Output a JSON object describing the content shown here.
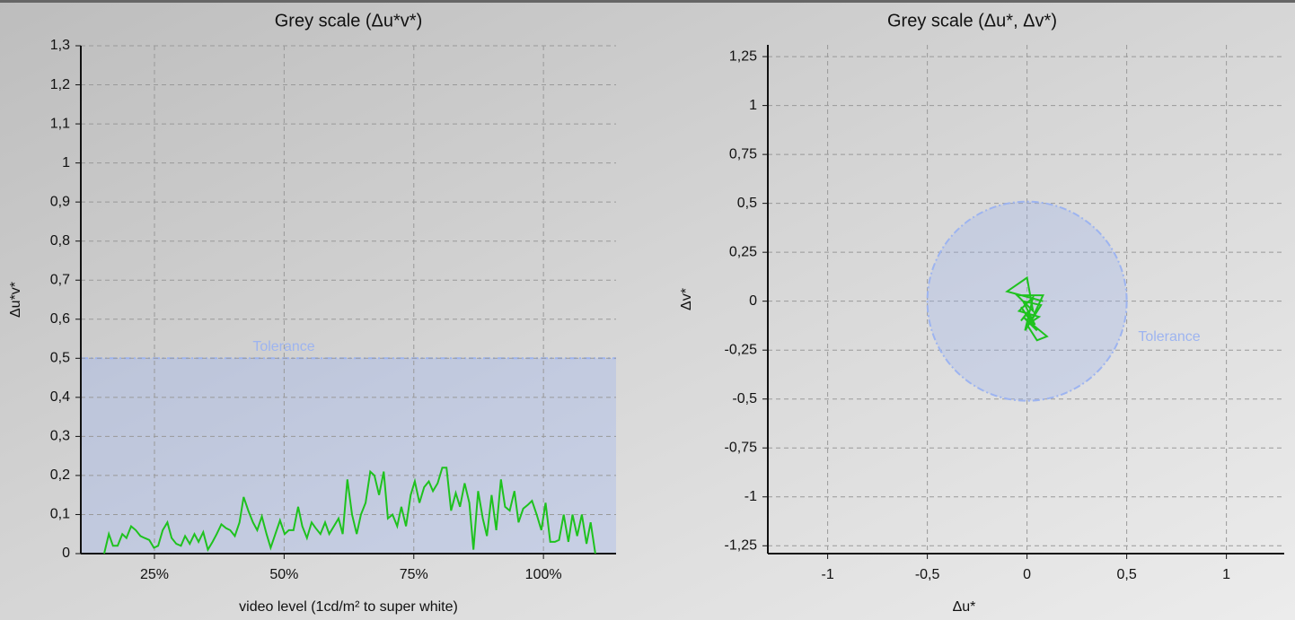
{
  "chart_data": [
    {
      "type": "line",
      "title": "Grey scale (Δu*v*)",
      "x_label": "video level (1cd/m² to super white)",
      "y_label": "Δu*v*",
      "color": "#1ec21e",
      "grid": true,
      "tolerance": {
        "label": "Tolerance",
        "value": 0.5,
        "shape": "band",
        "color": "#9db4f0"
      },
      "xlim": [
        10.8,
        114
      ],
      "ylim": [
        0,
        1.3
      ],
      "xticks": [
        {
          "value": 25,
          "label": "25%"
        },
        {
          "value": 50,
          "label": "50%"
        },
        {
          "value": 75,
          "label": "75%"
        },
        {
          "value": 100,
          "label": "100%"
        }
      ],
      "yticks": [
        0,
        {
          "value": 0.1,
          "label": "0,1"
        },
        {
          "value": 0.2,
          "label": "0,2"
        },
        {
          "value": 0.3,
          "label": "0,3"
        },
        {
          "value": 0.4,
          "label": "0,4"
        },
        {
          "value": 0.5,
          "label": "0,5"
        },
        {
          "value": 0.6,
          "label": "0,6"
        },
        {
          "value": 0.7,
          "label": "0,7"
        },
        {
          "value": 0.8,
          "label": "0,8"
        },
        {
          "value": 0.9,
          "label": "0,9"
        },
        1,
        {
          "value": 1.1,
          "label": "1,1"
        },
        {
          "value": 1.2,
          "label": "1,2"
        },
        {
          "value": 1.3,
          "label": "1,3"
        }
      ],
      "x": [
        15.3,
        16.2,
        17.0,
        17.9,
        18.8,
        19.6,
        20.5,
        21.4,
        22.3,
        23.1,
        24.0,
        24.9,
        25.7,
        26.6,
        27.5,
        28.3,
        29.2,
        30.1,
        30.9,
        31.8,
        32.7,
        33.5,
        34.4,
        35.3,
        36.2,
        37.0,
        37.9,
        38.8,
        39.6,
        40.5,
        41.4,
        42.2,
        43.1,
        44.0,
        44.8,
        45.7,
        46.6,
        47.4,
        48.3,
        49.2,
        50.1,
        50.9,
        51.8,
        52.7,
        53.5,
        54.4,
        55.3,
        56.1,
        57.0,
        57.9,
        58.7,
        59.6,
        60.5,
        61.3,
        62.2,
        63.1,
        64.0,
        64.8,
        65.7,
        66.6,
        67.4,
        68.3,
        69.2,
        70.0,
        70.9,
        71.8,
        72.6,
        73.5,
        74.4,
        75.2,
        76.1,
        77.0,
        77.9,
        78.7,
        79.6,
        80.5,
        81.3,
        82.2,
        83.1,
        83.9,
        84.8,
        85.7,
        86.5,
        87.4,
        88.3,
        89.1,
        90.0,
        90.9,
        91.8,
        92.6,
        93.5,
        94.4,
        95.2,
        96.1,
        97.0,
        97.8,
        98.7,
        99.6,
        100.4,
        101.3,
        102.2,
        103.0,
        103.9,
        104.8,
        105.6,
        106.5,
        107.4,
        108.3,
        109.1,
        110.0
      ],
      "values": [
        0,
        0.05,
        0.02,
        0.02,
        0.05,
        0.04,
        0.07,
        0.06,
        0.045,
        0.04,
        0.035,
        0.015,
        0.02,
        0.06,
        0.08,
        0.04,
        0.025,
        0.02,
        0.045,
        0.025,
        0.05,
        0.03,
        0.055,
        0.01,
        0.03,
        0.05,
        0.075,
        0.065,
        0.06,
        0.045,
        0.08,
        0.145,
        0.11,
        0.08,
        0.06,
        0.095,
        0.05,
        0.015,
        0.05,
        0.085,
        0.05,
        0.06,
        0.06,
        0.12,
        0.07,
        0.04,
        0.08,
        0.065,
        0.05,
        0.08,
        0.05,
        0.07,
        0.09,
        0.05,
        0.19,
        0.1,
        0.05,
        0.1,
        0.13,
        0.21,
        0.2,
        0.15,
        0.21,
        0.09,
        0.1,
        0.07,
        0.12,
        0.07,
        0.15,
        0.185,
        0.13,
        0.17,
        0.185,
        0.16,
        0.18,
        0.22,
        0.22,
        0.11,
        0.155,
        0.12,
        0.18,
        0.13,
        0.01,
        0.16,
        0.09,
        0.045,
        0.15,
        0.06,
        0.19,
        0.12,
        0.11,
        0.16,
        0.08,
        0.115,
        0.125,
        0.135,
        0.1,
        0.06,
        0.13,
        0.03,
        0.03,
        0.035,
        0.1,
        0.03,
        0.1,
        0.045,
        0.1,
        0.025,
        0.08,
        0
      ]
    },
    {
      "type": "line",
      "title": "Grey scale (Δu*, Δv*)",
      "x_label": "Δu*",
      "y_label": "Δv*",
      "color": "#1ec21e",
      "grid": true,
      "tolerance": {
        "label": "Tolerance",
        "value": 0.5,
        "shape": "circle",
        "color": "#9db4f0"
      },
      "xlim": [
        -1.3,
        1.29
      ],
      "ylim": [
        -1.29,
        1.31
      ],
      "xticks": [
        -1,
        {
          "value": -0.5,
          "label": "-0,5"
        },
        0,
        {
          "value": 0.5,
          "label": "0,5"
        },
        1
      ],
      "yticks": [
        {
          "value": -1.25,
          "label": "-1,25"
        },
        -1,
        {
          "value": -0.75,
          "label": "-0,75"
        },
        {
          "value": -0.5,
          "label": "-0,5"
        },
        {
          "value": -0.25,
          "label": "-0,25"
        },
        0,
        {
          "value": 0.25,
          "label": "0,25"
        },
        {
          "value": 0.5,
          "label": "0,5"
        },
        {
          "value": 0.75,
          "label": "0,75"
        },
        1,
        {
          "value": 1.25,
          "label": "1,25"
        }
      ],
      "x": [
        0.08,
        -0.1,
        0.0,
        0.03,
        -0.05,
        0.08,
        0.02,
        -0.03,
        0.05,
        -0.02,
        0.1,
        0.05,
        0.0,
        0.06,
        -0.04,
        0.03,
        -0.01,
        0.07,
        -0.02,
        0.04,
        0.0,
        -0.03,
        0.02
      ],
      "values": [
        0.0,
        0.05,
        0.12,
        -0.05,
        0.03,
        0.03,
        -0.1,
        -0.03,
        -0.15,
        -0.08,
        -0.18,
        -0.2,
        -0.12,
        -0.08,
        -0.05,
        0.02,
        -0.15,
        -0.02,
        0.0,
        -0.12,
        -0.06,
        -0.1,
        -0.04
      ]
    }
  ]
}
